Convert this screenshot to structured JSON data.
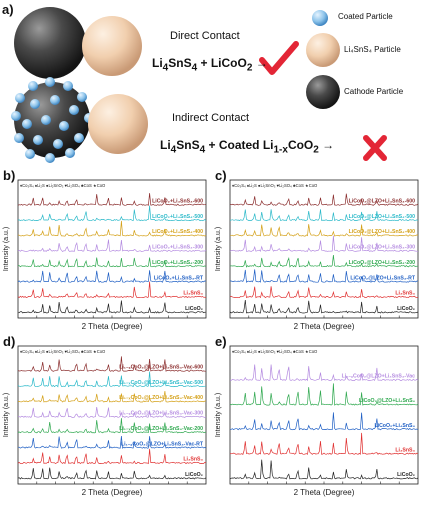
{
  "schematic": {
    "panel_label": "a)",
    "direct_label": "Direct Contact",
    "indirect_label": "Indirect Contact",
    "direct_formula": {
      "a": "Li",
      "a_sub": "4",
      "b": "SnS",
      "b_sub": "4",
      "c": " + LiCoO",
      "c_sub": "2",
      "arrow": " →"
    },
    "indirect_formula": {
      "a": "Li",
      "a_sub": "4",
      "b": "SnS",
      "b_sub": "4",
      "c": " + Coated Li",
      "c_sub": "1-x",
      "d": "CoO",
      "d_sub": "2",
      "arrow": " →"
    },
    "legend": [
      {
        "label": "Coated Particle"
      },
      {
        "label": "Li₄SnS₄ Particle"
      },
      {
        "label": "Cathode Particle"
      }
    ],
    "colors": {
      "tick": "#e32636",
      "cross": "#e32636"
    }
  },
  "chart_data": [
    {
      "type": "line",
      "panel": "b)",
      "xlabel": "2 Theta (Degree)",
      "ylabel": "Intensity (a.u.)",
      "marker_legend": [
        "♦Co₃S₄",
        "♠Li₂S",
        "●Li₂SnO₃",
        "♥Li₂SO₄",
        "♣CoS",
        "★CoO"
      ],
      "series": [
        {
          "name": "LiCoO₂+Li₄SnS₄-600",
          "color": "#8b2e2e"
        },
        {
          "name": "LiCoO₂+Li₄SnS₄-500",
          "color": "#2bb9c9"
        },
        {
          "name": "LiCoO₂+Li₄SnS₄-400",
          "color": "#d4a017"
        },
        {
          "name": "LiCoO₂+Li₄SnS₄-300",
          "color": "#b48be0"
        },
        {
          "name": "LiCoO₂+Li₄SnS₄-200",
          "color": "#2fa84f"
        },
        {
          "name": "LiCoO₂+Li₄SnS₄-RT",
          "color": "#1f5fc4"
        },
        {
          "name": "Li₄SnS₄",
          "color": "#e03030"
        },
        {
          "name": "LiCoO₂",
          "color": "#222222"
        }
      ]
    },
    {
      "type": "line",
      "panel": "c)",
      "xlabel": "2 Theta (Degree)",
      "ylabel": "Intensity (a.u.)",
      "marker_legend": [
        "♦Co₃S₄",
        "♠Li₂S",
        "●Li₂SnO₃",
        "♥Li₂SO₄",
        "♣CoS",
        "★CoO"
      ],
      "series": [
        {
          "name": "LiCoO₂@LZO+Li₄SnS₄-600",
          "color": "#8b2e2e"
        },
        {
          "name": "LiCoO₂@LZO+Li₄SnS₄-500",
          "color": "#2bb9c9"
        },
        {
          "name": "LiCoO₂@LZO+Li₄SnS₄-400",
          "color": "#d4a017"
        },
        {
          "name": "LiCoO₂@LZO+Li₄SnS₄-300",
          "color": "#b48be0"
        },
        {
          "name": "LiCoO₂@LZO+Li₄SnS₄-200",
          "color": "#2fa84f"
        },
        {
          "name": "LiCoO₂@LZO+Li₄SnS₄-RT",
          "color": "#1f5fc4"
        },
        {
          "name": "Li₄SnS₄",
          "color": "#e03030"
        },
        {
          "name": "LiCoO₂",
          "color": "#222222"
        }
      ]
    },
    {
      "type": "line",
      "panel": "d)",
      "xlabel": "2 Theta (Degree)",
      "ylabel": "Intensity (a.u.)",
      "marker_legend": [
        "♦Co₃S₄",
        "♠Li₂S",
        "●Li₂SnO₃",
        "♥Li₂SO₄",
        "♣CoS",
        "★CoO"
      ],
      "series": [
        {
          "name": "Li₁₋ₓCoO₂@LZO+Li₄SnS₄-Vac-600",
          "color": "#8b2e2e"
        },
        {
          "name": "Li₁₋ₓCoO₂@LZO+Li₄SnS₄-Vac-500",
          "color": "#2bb9c9"
        },
        {
          "name": "Li₁₋ₓCoO₂@LZO+Li₄SnS₄-Vac-400",
          "color": "#d4a017"
        },
        {
          "name": "Li₁₋ₓCoO₂@LZO+Li₄SnS₄-Vac-300",
          "color": "#b48be0"
        },
        {
          "name": "Li₁₋ₓCoO₂@LZO+Li₄SnS₄-Vac-200",
          "color": "#2fa84f"
        },
        {
          "name": "Li₁₋ₓCoO₂@LZO+Li₄SnS₄-Vac-RT",
          "color": "#1f5fc4"
        },
        {
          "name": "Li₄SnS₄",
          "color": "#e03030"
        },
        {
          "name": "LiCoO₂",
          "color": "#222222"
        }
      ]
    },
    {
      "type": "line",
      "panel": "e)",
      "xlabel": "2 Theta (Degree)",
      "ylabel": "Intensity (a.u.)",
      "marker_legend": [
        "♦Co₃S₄",
        "♠Li₂S",
        "●Li₂SnO₃",
        "♥Li₂SO₄",
        "♣CoS",
        "★CoO"
      ],
      "series": [
        {
          "name": "Li₁₋ₓCoO₂@LZO+Li₄SnS₄-Vac",
          "color": "#b48be0"
        },
        {
          "name": "LiCoO₂@LZO+Li₄SnS₄",
          "color": "#2fa84f"
        },
        {
          "name": "LiCoO₂+Li₄SnS₄",
          "color": "#1f5fc4"
        },
        {
          "name": "Li₄SnS₄",
          "color": "#e03030"
        },
        {
          "name": "LiCoO₂",
          "color": "#222222"
        }
      ]
    }
  ]
}
